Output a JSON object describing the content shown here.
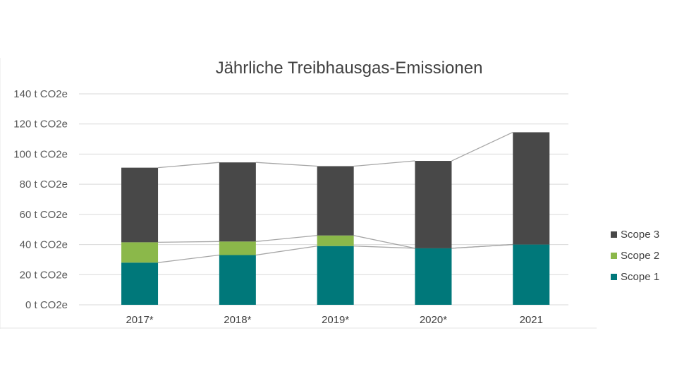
{
  "chart_data": {
    "type": "bar",
    "stacked": true,
    "title": "Jährliche Treibhausgas-Emissionen",
    "xlabel": "",
    "ylabel": "",
    "categories": [
      "2017*",
      "2018*",
      "2019*",
      "2020*",
      "2021"
    ],
    "series": [
      {
        "name": "Scope 1",
        "color": "#00787a",
        "values": [
          28,
          33,
          39,
          37.5,
          40
        ]
      },
      {
        "name": "Scope 2",
        "color": "#8bb84a",
        "values": [
          13.5,
          9,
          7,
          0,
          0
        ]
      },
      {
        "name": "Scope 3",
        "color": "#484848",
        "values": [
          49.5,
          52.5,
          46,
          58,
          74.5
        ]
      }
    ],
    "ylim": [
      0,
      140
    ],
    "yticks": [
      0,
      20,
      40,
      60,
      80,
      100,
      120,
      140
    ],
    "ytick_labels": [
      "0 t CO2e",
      "20 t CO2e",
      "40 t CO2e",
      "60 t CO2e",
      "80 t CO2e",
      "100 t CO2e",
      "120 t CO2e",
      "140 t CO2e"
    ],
    "grid": true,
    "legend_position": "right",
    "legend_order": [
      "Scope 3",
      "Scope 2",
      "Scope 1"
    ],
    "series_lines": true,
    "series_line_color": "#a6a6a6"
  }
}
